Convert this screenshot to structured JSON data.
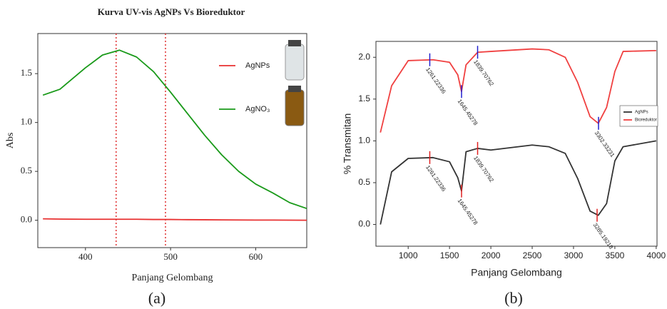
{
  "chart_data": [
    {
      "type": "line",
      "title": "Kurva UV-vis AgNPs Vs Bioreduktor",
      "x_label": "Panjang Gelombang",
      "y_label": "Abs",
      "caption": "(a)",
      "x": [
        350,
        370,
        400,
        420,
        440,
        460,
        480,
        500,
        520,
        540,
        560,
        580,
        600,
        620,
        640,
        660
      ],
      "series": [
        {
          "name": "AgNPs",
          "color": "#e83030",
          "values": [
            0.015,
            0.012,
            0.01,
            0.01,
            0.01,
            0.01,
            0.008,
            0.008,
            0.006,
            0.005,
            0.004,
            0.003,
            0.002,
            0.002,
            0.001,
            0.0
          ]
        },
        {
          "name": "AgNO₃",
          "color": "#1a9a1a",
          "values": [
            1.28,
            1.34,
            1.56,
            1.69,
            1.74,
            1.67,
            1.52,
            1.31,
            1.09,
            0.87,
            0.67,
            0.5,
            0.37,
            0.28,
            0.18,
            0.12
          ]
        }
      ],
      "vlines": [
        436,
        494
      ],
      "vline_color": "#e03030",
      "xlim": [
        344,
        660
      ],
      "ylim": [
        -0.28,
        1.91
      ],
      "xticks": [
        400,
        500,
        600
      ],
      "yticks": [
        {
          "value": 0,
          "label": "0.0"
        },
        0.5,
        {
          "value": 1,
          "label": "1.0"
        },
        1.5
      ]
    },
    {
      "type": "line",
      "x_label": "Panjang Gelombang",
      "y_label": "% Transmitan",
      "caption": "(b)",
      "x": [
        664,
        800,
        1000,
        1300,
        1500,
        1600,
        1645,
        1700,
        1840,
        2000,
        2500,
        2700,
        2900,
        3050,
        3200,
        3300,
        3400,
        3500,
        3600,
        4000
      ],
      "series": [
        {
          "name": "AgNPs",
          "color": "#333333",
          "marker_color": "#e02020",
          "values": [
            0.0,
            0.63,
            0.79,
            0.8,
            0.75,
            0.56,
            0.4,
            0.87,
            0.91,
            0.89,
            0.95,
            0.93,
            0.85,
            0.55,
            0.16,
            0.11,
            0.25,
            0.76,
            0.93,
            1.0
          ],
          "annotations": [
            {
              "x": 1261.22336,
              "y": 0.8,
              "text": "1261.22336"
            },
            {
              "x": 1645.45278,
              "y": 0.4,
              "text": "1645.45278"
            },
            {
              "x": 1839.70762,
              "y": 0.91,
              "text": "1839.70762"
            },
            {
              "x": 3285.19218,
              "y": 0.11,
              "text": "3285.19218"
            }
          ]
        },
        {
          "name": "Bioreduktor",
          "color": "#f04040",
          "marker_color": "#2020d0",
          "values": [
            1.1,
            1.66,
            1.96,
            1.97,
            1.94,
            1.79,
            1.59,
            1.91,
            2.06,
            2.07,
            2.1,
            2.09,
            2.0,
            1.7,
            1.29,
            1.21,
            1.4,
            1.83,
            2.07,
            2.08
          ],
          "annotations": [
            {
              "x": 1261.22336,
              "y": 1.97,
              "text": "1261.22336"
            },
            {
              "x": 1645.45278,
              "y": 1.59,
              "text": "1645.45278"
            },
            {
              "x": 1839.70762,
              "y": 2.06,
              "text": "1839.70762"
            },
            {
              "x": 3302.33231,
              "y": 1.21,
              "text": "3302.33231"
            }
          ]
        }
      ],
      "xlim": [
        610,
        4010
      ],
      "ylim": [
        -0.26,
        2.19
      ],
      "xticks": [
        1000,
        1500,
        2000,
        2500,
        3000,
        3500,
        4000
      ],
      "yticks": [
        {
          "value": 0,
          "label": "0.0"
        },
        0.5,
        {
          "value": 1,
          "label": "1.0"
        },
        1.5,
        {
          "value": 2,
          "label": "2.0"
        }
      ]
    }
  ]
}
